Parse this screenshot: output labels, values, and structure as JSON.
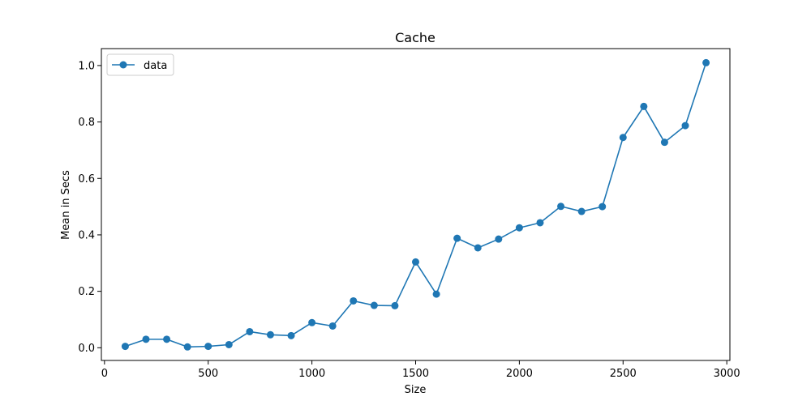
{
  "chart_data": {
    "type": "line",
    "title": "Cache",
    "xlabel": "Size",
    "ylabel": "Mean in Secs",
    "xlim": [
      -15,
      3015
    ],
    "ylim": [
      -0.045,
      1.06
    ],
    "xticks": [
      0,
      500,
      1000,
      1500,
      2000,
      2500,
      3000
    ],
    "yticks": [
      0.0,
      0.2,
      0.4,
      0.6,
      0.8,
      1.0
    ],
    "xtick_labels": [
      "0",
      "500",
      "1000",
      "1500",
      "2000",
      "2500",
      "3000"
    ],
    "ytick_labels": [
      "0.0",
      "0.2",
      "0.4",
      "0.6",
      "0.8",
      "1.0"
    ],
    "grid": false,
    "legend_position": "upper left",
    "color": "#1f77b4",
    "series": [
      {
        "name": "data",
        "x": [
          100,
          200,
          300,
          400,
          500,
          600,
          700,
          800,
          900,
          1000,
          1100,
          1200,
          1300,
          1400,
          1500,
          1600,
          1700,
          1800,
          1900,
          2000,
          2100,
          2200,
          2300,
          2400,
          2500,
          2600,
          2700,
          2800,
          2900
        ],
        "y": [
          0.005,
          0.03,
          0.03,
          0.003,
          0.005,
          0.011,
          0.057,
          0.046,
          0.043,
          0.089,
          0.077,
          0.166,
          0.15,
          0.149,
          0.304,
          0.19,
          0.388,
          0.354,
          0.385,
          0.425,
          0.443,
          0.501,
          0.483,
          0.5,
          0.745,
          0.855,
          0.728,
          0.787,
          1.01
        ]
      }
    ]
  }
}
